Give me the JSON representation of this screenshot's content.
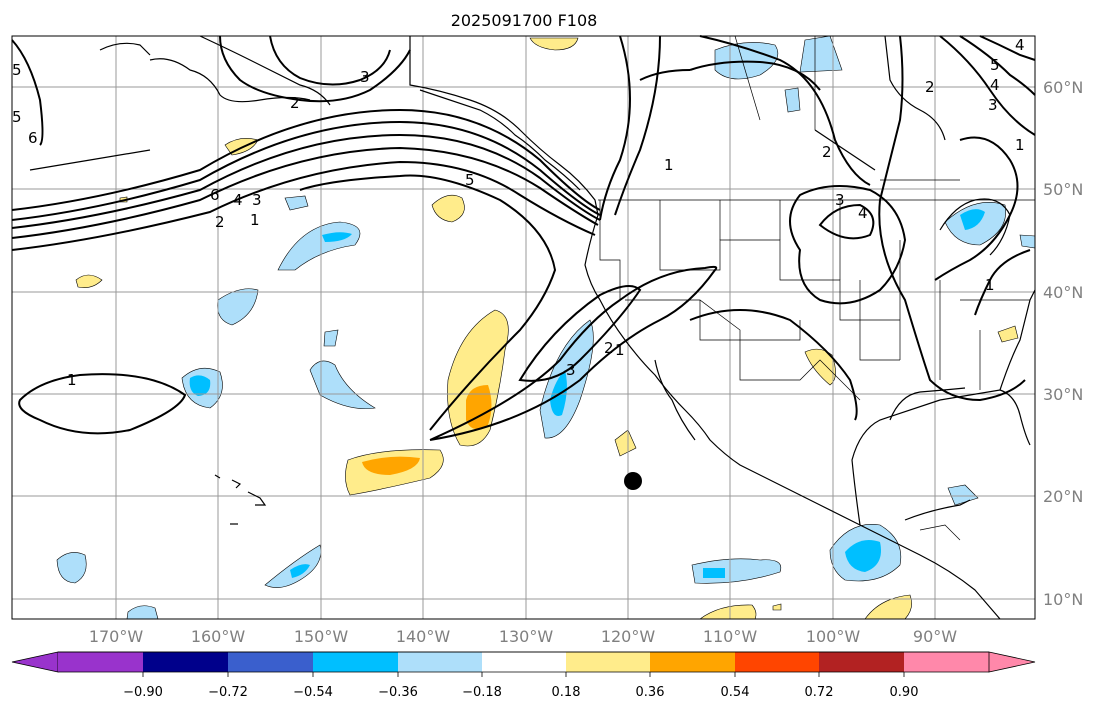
{
  "title": "2025091700 F108",
  "lat_labels": [
    "60°N",
    "50°N",
    "40°N",
    "30°N",
    "20°N",
    "10°N"
  ],
  "lon_labels": [
    "170°W",
    "160°W",
    "150°W",
    "140°W",
    "130°W",
    "120°W",
    "110°W",
    "100°W",
    "90°W"
  ],
  "colorbar": {
    "ticks": [
      "−0.90",
      "−0.72",
      "−0.54",
      "−0.36",
      "−0.18",
      "0.18",
      "0.36",
      "0.54",
      "0.72",
      "0.90"
    ],
    "colors": [
      "#9933cc",
      "#00008b",
      "#3a5fcd",
      "#00bfff",
      "#aedffa",
      "#ffffff",
      "#ffec8b",
      "#ffa500",
      "#ff4500",
      "#b22222",
      "#ff88aa"
    ]
  },
  "contour_labels": [
    "1",
    "2",
    "3",
    "4",
    "5",
    "6",
    "1",
    "2",
    "3",
    "1",
    "2",
    "3",
    "4",
    "5",
    "1",
    "2",
    "3",
    "4",
    "1",
    "5",
    "6",
    "5",
    "2",
    "3",
    "4",
    "1"
  ],
  "marker": "storm-center-dot",
  "colors": {
    "land": "#000000",
    "grid": "#999999",
    "contour": "#000000",
    "label": "#808080"
  }
}
